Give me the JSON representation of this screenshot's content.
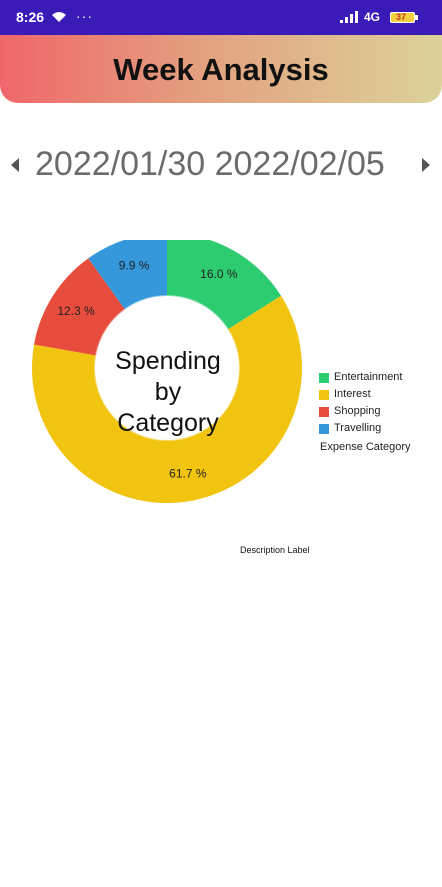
{
  "status_bar": {
    "time": "8:26",
    "dots": "···",
    "network": "4G",
    "battery": "37"
  },
  "header": {
    "title": "Week Analysis"
  },
  "date_nav": {
    "range": "2022/01/30 2022/02/05"
  },
  "chart": {
    "center_text": [
      "Spending",
      "by",
      "Category"
    ],
    "legend_title": "Expense Category",
    "description": "Description Label"
  },
  "chart_data": {
    "type": "pie",
    "categories": [
      "Entertainment",
      "Interest",
      "Shopping",
      "Travelling"
    ],
    "values": [
      16.0,
      61.7,
      12.3,
      9.9
    ],
    "value_labels": [
      "16.0 %",
      "61.7 %",
      "12.3 %",
      "9.9 %"
    ],
    "colors": [
      "#2ecc71",
      "#f1c40f",
      "#e74c3c",
      "#3498db"
    ],
    "donut": true,
    "legend_position": "right",
    "legend_title": "Expense Category"
  }
}
